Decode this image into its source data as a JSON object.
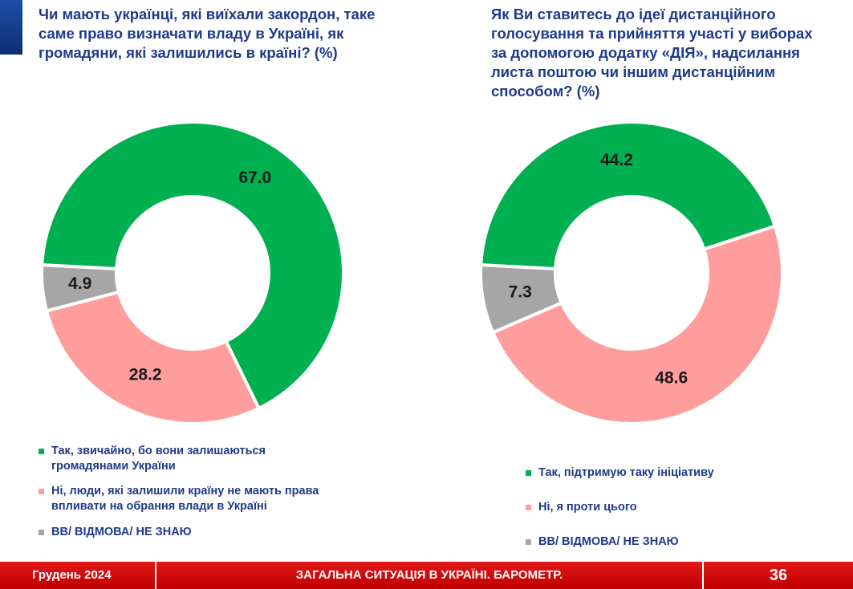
{
  "chart_data": [
    {
      "type": "donut",
      "title": "Чи мають українці, які виїхали закордон, таке саме право визначати владу в Україні, як громадяни, які залишились в країні? (%)",
      "categories": [
        "Так, звичайно, бо вони залишаються громадянами України",
        "Ні, люди, які залишили країну не мають права впливати на обрання влади в Україні",
        "ВВ/ ВІДМОВА/ НЕ ЗНАЮ"
      ],
      "values": [
        67.0,
        28.2,
        4.9
      ],
      "value_labels": [
        "67.0",
        "28.2",
        "4.9"
      ],
      "colors": [
        "#00b050",
        "#ff9d9d",
        "#a6a6a6"
      ]
    },
    {
      "type": "donut",
      "title": "Як Ви ставитесь до ідеї дистанційного голосування та прийняття участі у виборах за допомогою додатку «ДІЯ», надсилання листа поштою чи іншим дистанційним способом? (%)",
      "categories": [
        "Так, підтримую таку ініціативу",
        "Ні, я проти цього",
        "ВВ/ ВІДМОВА/ НЕ ЗНАЮ"
      ],
      "values": [
        44.2,
        48.6,
        7.3
      ],
      "value_labels": [
        "44.2",
        "48.6",
        "7.3"
      ],
      "colors": [
        "#00b050",
        "#ff9d9d",
        "#a6a6a6"
      ]
    }
  ],
  "footer": {
    "date": "Грудень 2024",
    "caption": "ЗАГАЛЬНА СИТУАЦІЯ В УКРАЇНІ. БАРОМЕТР.",
    "page": "36"
  }
}
